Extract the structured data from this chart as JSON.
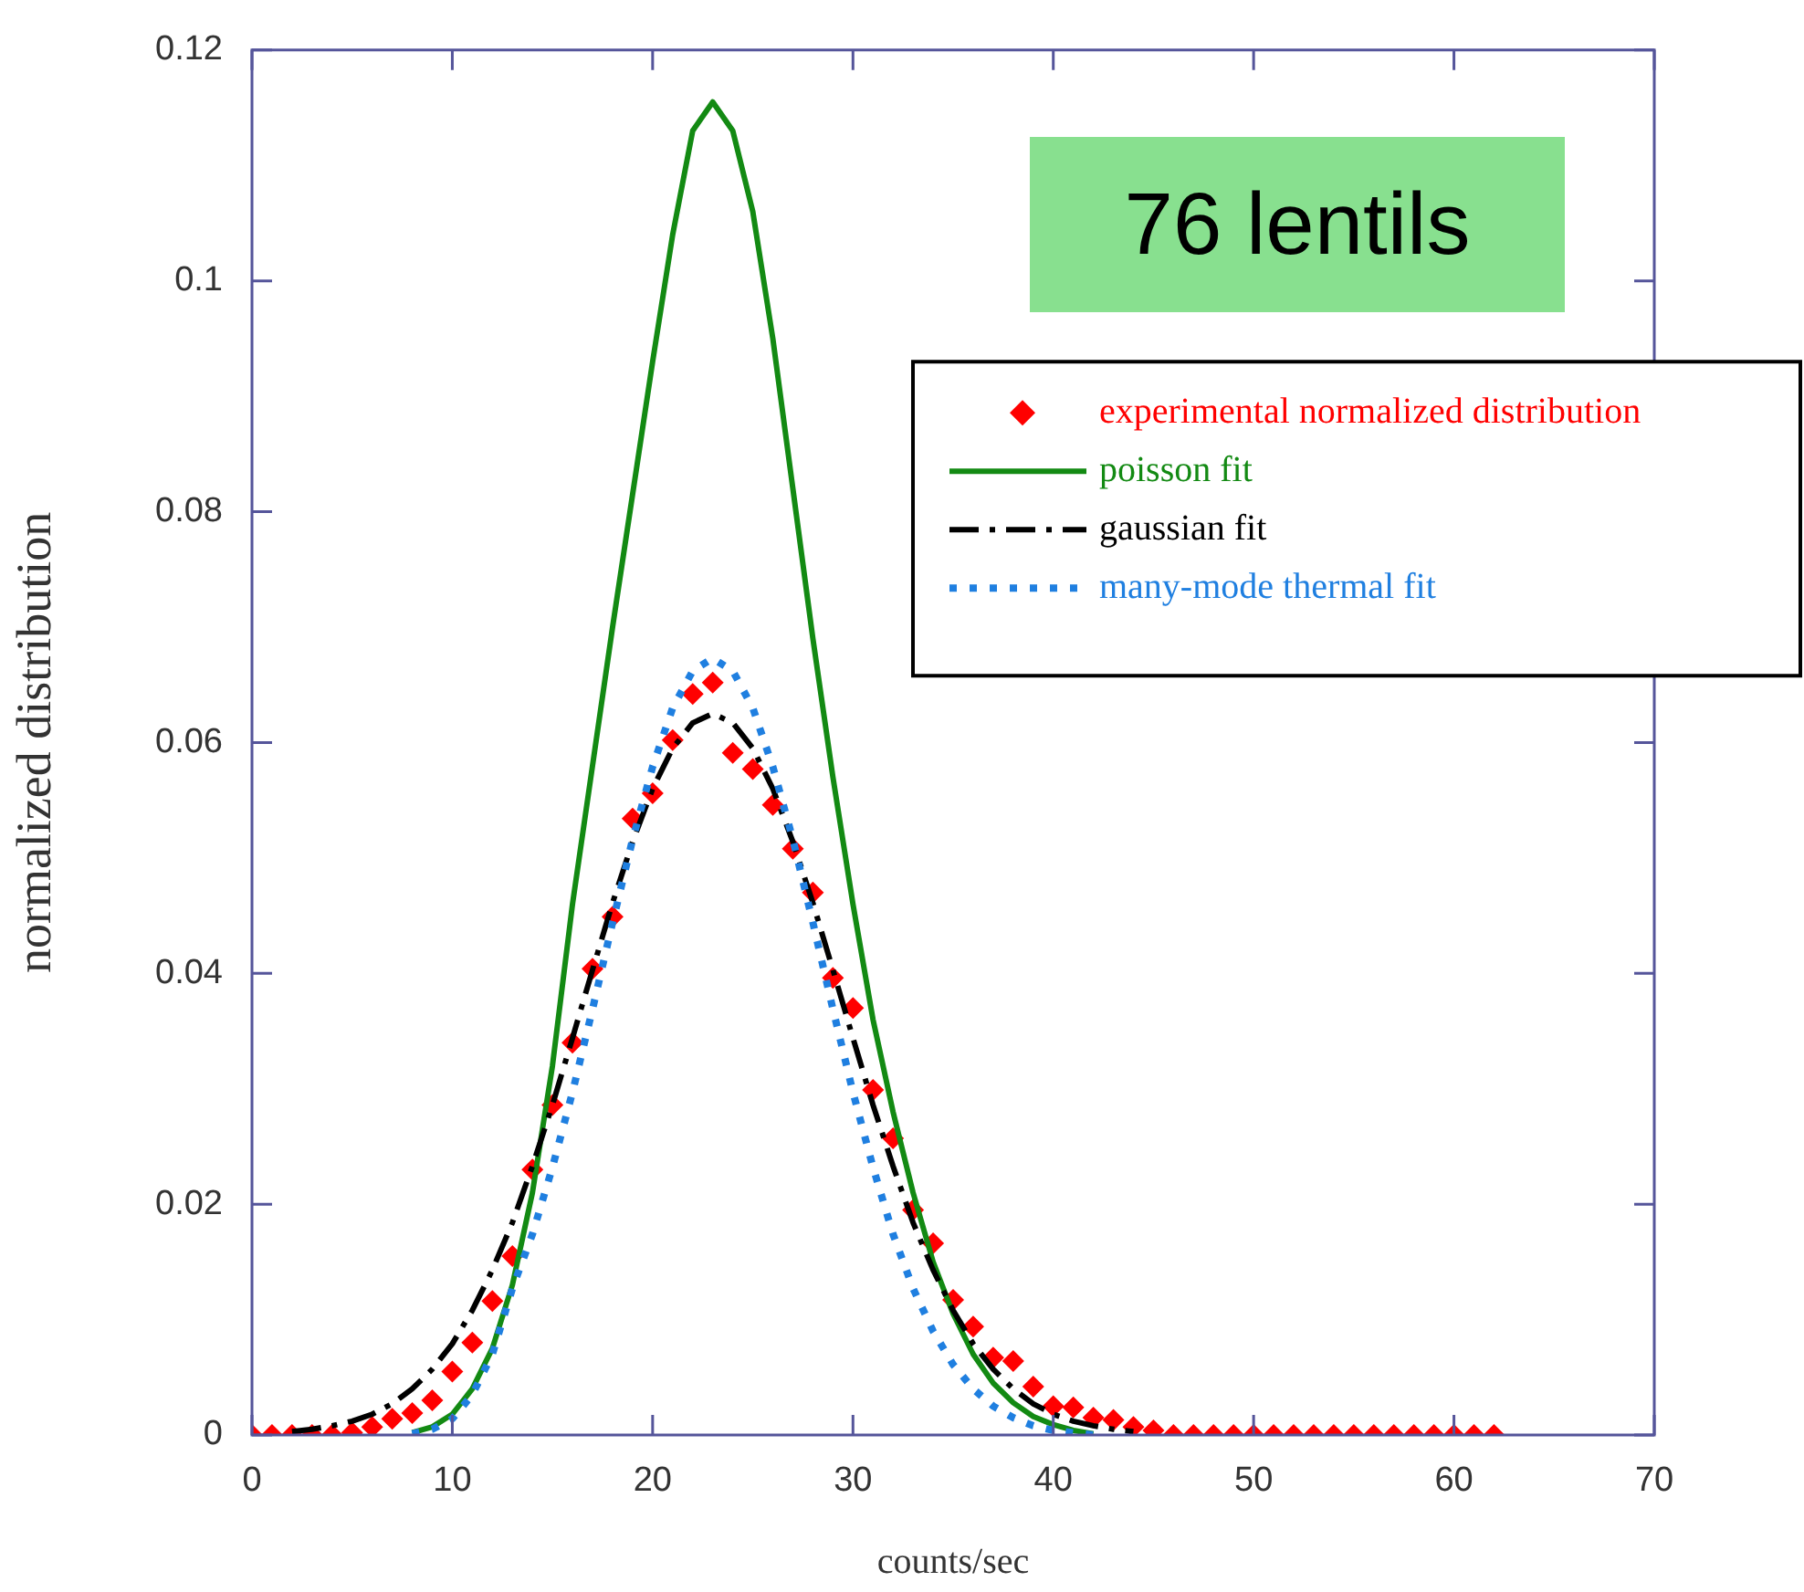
{
  "chart_data": {
    "type": "scatter",
    "xlabel": "counts/sec",
    "ylabel": "normalized distribution",
    "xlim": [
      0,
      70
    ],
    "xticks": [
      0,
      10,
      20,
      30,
      40,
      50,
      60,
      70
    ],
    "ylim": [
      0,
      0.12
    ],
    "yticks": [
      0,
      0.02,
      0.04,
      0.06,
      0.08,
      0.1,
      0.12
    ],
    "grid": false,
    "legend": "right",
    "annotations": [
      "76 lentils"
    ],
    "series": [
      {
        "name": "experimental normalized distribution",
        "type": "scatter",
        "marker": "diamond",
        "color": "#ff0000",
        "x": [
          0,
          1,
          2,
          3,
          4,
          5,
          6,
          7,
          8,
          9,
          10,
          11,
          12,
          13,
          14,
          15,
          16,
          17,
          18,
          19,
          20,
          21,
          22,
          23,
          24,
          25,
          26,
          27,
          28,
          29,
          30,
          31,
          32,
          33,
          34,
          35,
          36,
          37,
          38,
          39,
          40,
          41,
          42,
          43,
          44,
          45,
          46,
          47,
          48,
          49,
          50,
          51,
          52,
          53,
          54,
          55,
          56,
          57,
          58,
          59,
          60,
          61,
          62
        ],
        "values": [
          0,
          0,
          0,
          0,
          0,
          0.0002,
          0.0007,
          0.0014,
          0.0019,
          0.003,
          0.0055,
          0.008,
          0.0116,
          0.0155,
          0.023,
          0.0286,
          0.034,
          0.0404,
          0.0449,
          0.0534,
          0.0556,
          0.0602,
          0.0642,
          0.0652,
          0.0591,
          0.0577,
          0.0546,
          0.0508,
          0.047,
          0.0396,
          0.037,
          0.0299,
          0.0257,
          0.0195,
          0.0166,
          0.0117,
          0.0094,
          0.0067,
          0.0064,
          0.0042,
          0.0025,
          0.0024,
          0.0015,
          0.0013,
          0.0007,
          0.0004,
          0,
          0,
          0,
          0,
          0,
          0,
          0,
          0,
          0,
          0,
          0,
          0,
          0,
          0,
          0,
          0,
          0
        ]
      },
      {
        "name": "poisson fit",
        "type": "line",
        "marker": "none",
        "line_style": "solid",
        "color": "#138a13",
        "x": [
          8,
          9,
          10,
          11,
          12,
          13,
          14,
          15,
          16,
          17,
          18,
          19,
          20,
          21,
          22,
          23,
          24,
          25,
          26,
          27,
          28,
          29,
          30,
          31,
          32,
          33,
          34,
          35,
          36,
          37,
          38,
          39,
          40,
          41,
          42
        ],
        "values": [
          0.0002,
          0.0007,
          0.0018,
          0.004,
          0.0075,
          0.013,
          0.021,
          0.032,
          0.046,
          0.058,
          0.07,
          0.0815,
          0.093,
          0.104,
          0.113,
          0.1155,
          0.113,
          0.106,
          0.095,
          0.082,
          0.069,
          0.057,
          0.046,
          0.036,
          0.028,
          0.021,
          0.015,
          0.0105,
          0.007,
          0.0045,
          0.0028,
          0.0016,
          0.0009,
          0.0004,
          0.0001
        ]
      },
      {
        "name": "gaussian fit",
        "type": "line",
        "marker": "none",
        "line_style": "dashed",
        "color": "#000000",
        "x": [
          2,
          3,
          4,
          5,
          6,
          7,
          8,
          9,
          10,
          11,
          12,
          13,
          14,
          15,
          16,
          17,
          18,
          19,
          20,
          21,
          22,
          23,
          24,
          25,
          26,
          27,
          28,
          29,
          30,
          31,
          32,
          33,
          34,
          35,
          36,
          37,
          38,
          39,
          40,
          41,
          42,
          43,
          44
        ],
        "values": [
          0.0003,
          0.0005,
          0.0008,
          0.0012,
          0.0018,
          0.0027,
          0.004,
          0.0057,
          0.0079,
          0.0108,
          0.0143,
          0.0184,
          0.0233,
          0.0286,
          0.0344,
          0.0403,
          0.0461,
          0.0514,
          0.056,
          0.0595,
          0.0617,
          0.0625,
          0.0617,
          0.0595,
          0.056,
          0.0514,
          0.0461,
          0.0403,
          0.0344,
          0.0286,
          0.0233,
          0.0184,
          0.0143,
          0.0108,
          0.0079,
          0.0057,
          0.004,
          0.0027,
          0.0018,
          0.0012,
          0.0008,
          0.0005,
          0.0003
        ]
      },
      {
        "name": "many-mode thermal fit",
        "type": "line",
        "marker": "none",
        "line_style": "dotted",
        "color": "#1f7fe0",
        "x": [
          8,
          9,
          10,
          11,
          12,
          13,
          14,
          15,
          16,
          17,
          18,
          19,
          20,
          21,
          22,
          23,
          24,
          25,
          26,
          27,
          28,
          29,
          30,
          31,
          32,
          33,
          34,
          35,
          36,
          37,
          38,
          39,
          40,
          41,
          42
        ],
        "values": [
          0.0001,
          0.0005,
          0.0014,
          0.0035,
          0.007,
          0.0127,
          0.0174,
          0.0232,
          0.0297,
          0.0369,
          0.0444,
          0.0516,
          0.0579,
          0.063,
          0.0662,
          0.0673,
          0.0662,
          0.063,
          0.0579,
          0.0516,
          0.0444,
          0.0369,
          0.0297,
          0.0232,
          0.0174,
          0.0127,
          0.009,
          0.0061,
          0.004,
          0.0025,
          0.0015,
          0.0008,
          0.0004,
          0.0002,
          0
        ]
      }
    ]
  }
}
